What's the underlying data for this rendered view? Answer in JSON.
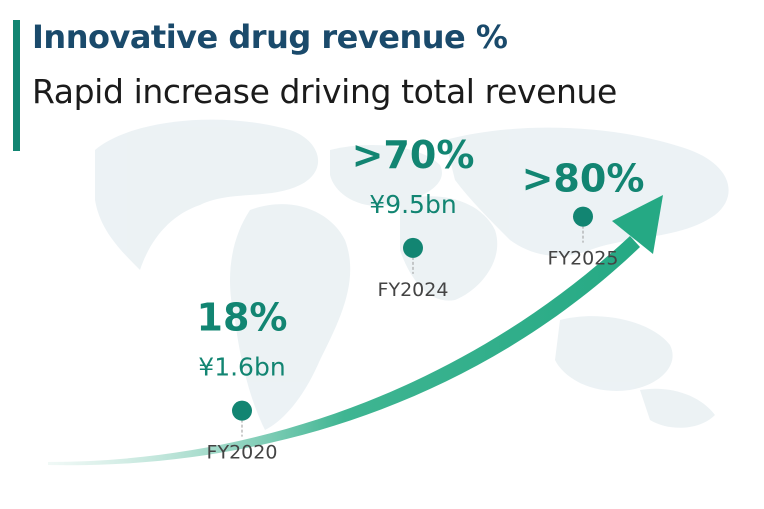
{
  "header": {
    "title": "Innovative drug revenue %",
    "subtitle": "Rapid increase driving total revenue"
  },
  "colors": {
    "accent": "#128572",
    "title": "#1a4a6b",
    "arrow": "#2aae8a",
    "text": "#1b1b1b",
    "muted": "#555555"
  },
  "chart_data": {
    "type": "line",
    "title": "Innovative drug revenue %",
    "subtitle": "Rapid increase driving total revenue",
    "x": [
      "FY2020",
      "FY2024",
      "FY2025"
    ],
    "series": [
      {
        "values": [
          18,
          70,
          80
        ],
        "value_labels": [
          "18%",
          ">70%",
          ">80%"
        ],
        "revenue_labels": [
          "¥1.6bn",
          "¥9.5bn",
          ""
        ]
      }
    ],
    "xlabel": "",
    "ylabel": "",
    "ylim": [
      0,
      100
    ],
    "grid": false,
    "legend": "none"
  }
}
